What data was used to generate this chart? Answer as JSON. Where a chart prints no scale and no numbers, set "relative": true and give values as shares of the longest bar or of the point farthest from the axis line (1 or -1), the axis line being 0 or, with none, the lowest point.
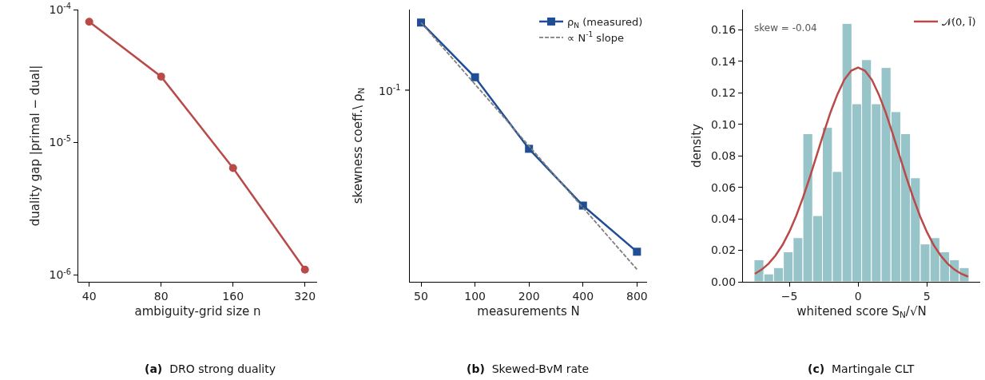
{
  "chart_data": [
    {
      "type": "line",
      "title": "(a)  DRO strong duality",
      "xlabel": "ambiguity-grid size n",
      "ylabel": "duality gap |primal − dual|",
      "log": "xy",
      "legend": false,
      "marker": "circle",
      "line_style": "solid",
      "x": [
        40,
        80,
        160,
        320
      ],
      "series": [
        {
          "color": "#b94a48",
          "values": [
            8.1e-05,
            3.13e-05,
            6.4e-06,
            1.1e-06
          ]
        }
      ],
      "xlim": [
        36,
        360
      ],
      "xticks": [
        40,
        80,
        160,
        320
      ],
      "ylim": [
        8.9e-07,
        0.0001
      ],
      "yticks": [
        {
          "value": 1e-06,
          "label": "10$^{-6}$"
        },
        {
          "value": 1e-05,
          "label": "10$^{-5}$"
        },
        {
          "value": 0.0001,
          "label": "10$^{-4}$"
        }
      ]
    },
    {
      "type": "line",
      "title": "(b)  Skewed-BvM rate",
      "xlabel": "measurements N",
      "ylabel": "skewness coeff.\\ ρ$_{N}$",
      "log": "x",
      "relative": true,
      "legend": "top right",
      "annotations": [
        "10$^{-1}$"
      ],
      "series": [
        {
          "name": "ρ$_{N}$ (measured)",
          "color": "#1f4e96",
          "x": [
            50,
            100,
            200,
            400,
            800
          ],
          "values": [
            1,
            0.789,
            0.513,
            0.294,
            0.116
          ],
          "marker": "square",
          "line_style": "solid"
        },
        {
          "name": "∝ N$^{-1}$ slope",
          "color": "#7f7f7f",
          "x": [
            50,
            800
          ],
          "values": [
            1,
            0.048
          ],
          "marker": "none",
          "line_style": "dashed"
        }
      ],
      "xlim": [
        43.3,
        911
      ],
      "xticks": [
        50,
        100,
        200,
        400,
        800
      ]
    },
    {
      "type": "histogram",
      "title": "(c)  Martingale CLT",
      "xlabel": "whitened score S$_{N}$/√N",
      "ylabel": "density",
      "legend": "top right",
      "color": "#97c4c9",
      "annotations": [
        "skew = -0.04"
      ],
      "bins": [
        -7.56,
        -6.85,
        -6.14,
        -5.43,
        -4.72,
        -4.01,
        -3.3,
        -2.59,
        -1.87,
        -1.16,
        -0.45,
        0.26,
        0.97,
        1.68,
        2.39,
        3.1,
        3.81,
        4.52,
        5.23,
        5.94,
        6.65,
        7.36,
        8.07
      ],
      "values": [
        0.014,
        0.005,
        0.009,
        0.019,
        0.028,
        0.094,
        0.042,
        0.098,
        0.07,
        0.164,
        0.113,
        0.141,
        0.113,
        0.136,
        0.108,
        0.094,
        0.066,
        0.024,
        0.028,
        0.019,
        0.014,
        0.009
      ],
      "series": [
        {
          "type": "line",
          "name": "𝒩(0, Ī)",
          "color": "#b94a48",
          "marker": "none",
          "line_style": "solid",
          "x": [
            -7.5,
            -7,
            -6.5,
            -6,
            -5.5,
            -5,
            -4.5,
            -4,
            -3.5,
            -3,
            -2.5,
            -2,
            -1.5,
            -1,
            -0.5,
            0,
            0.5,
            1,
            1.5,
            2,
            2.5,
            3,
            3.5,
            4,
            4.5,
            5,
            5.5,
            6,
            6.5,
            7,
            7.5,
            8
          ],
          "values": [
            0.0051,
            0.0078,
            0.0116,
            0.0167,
            0.0233,
            0.0317,
            0.0418,
            0.0536,
            0.0666,
            0.0805,
            0.0945,
            0.1077,
            0.119,
            0.1283,
            0.134,
            0.136,
            0.134,
            0.1283,
            0.119,
            0.1077,
            0.0945,
            0.0805,
            0.0666,
            0.0536,
            0.0418,
            0.0317,
            0.0233,
            0.0167,
            0.0116,
            0.0078,
            0.0051,
            0.0033
          ]
        }
      ],
      "xlim": [
        -8.37,
        8.88
      ],
      "xticks": [
        {
          "value": -5,
          "label": "−5"
        },
        0,
        5
      ],
      "ylim": [
        0,
        0.1728
      ],
      "yticks": [
        {
          "value": 0,
          "label": "0.00"
        },
        {
          "value": 0.02,
          "label": "0.02"
        },
        {
          "value": 0.04,
          "label": "0.04"
        },
        {
          "value": 0.06,
          "label": "0.06"
        },
        {
          "value": 0.08,
          "label": "0.08"
        },
        {
          "value": 0.1,
          "label": "0.10"
        },
        {
          "value": 0.12,
          "label": "0.12"
        },
        {
          "value": 0.14,
          "label": "0.14"
        },
        {
          "value": 0.16,
          "label": "0.16"
        }
      ]
    }
  ]
}
